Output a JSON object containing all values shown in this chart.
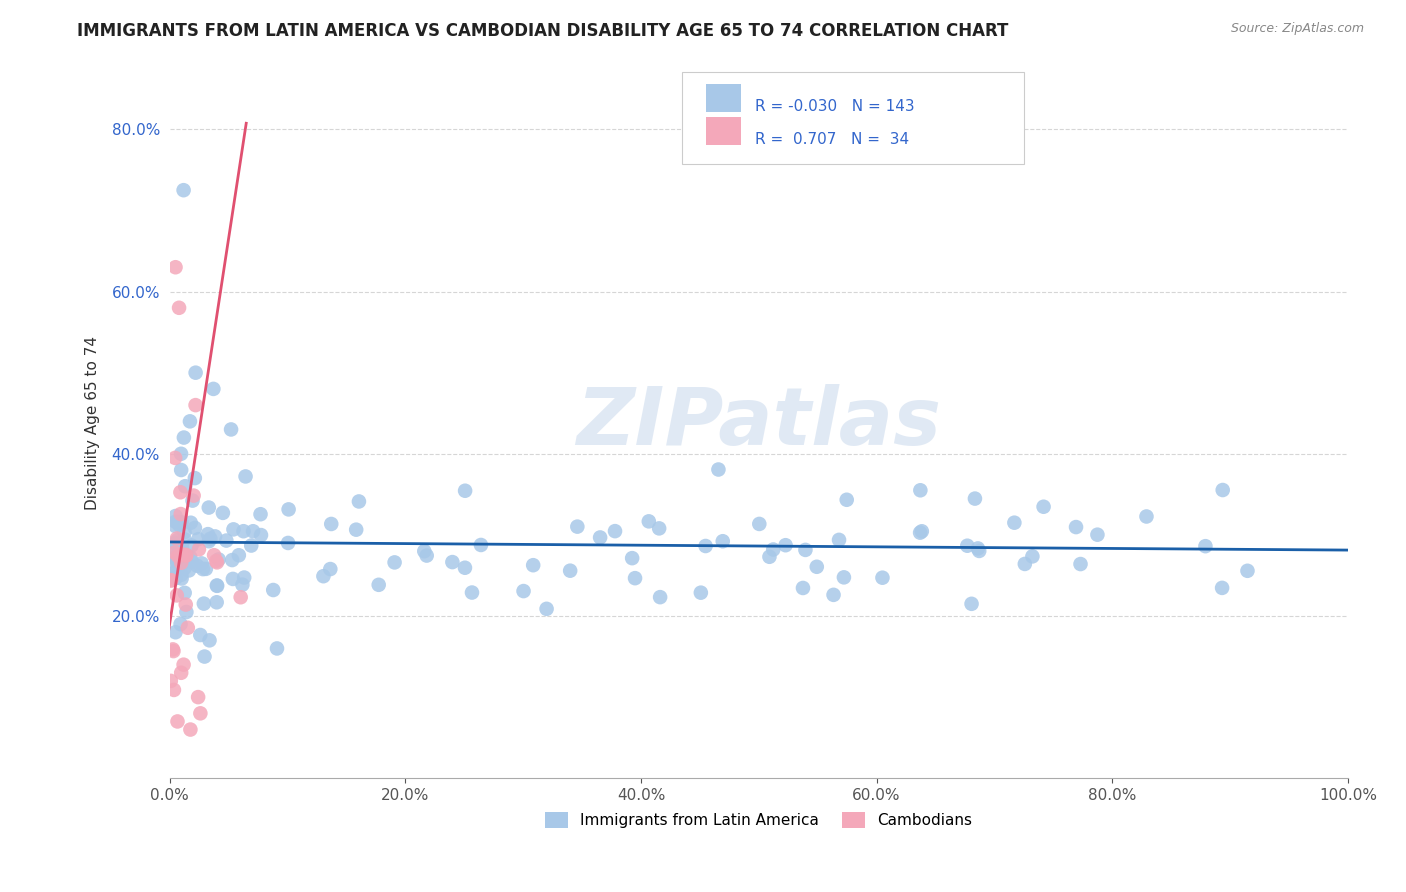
{
  "title": "IMMIGRANTS FROM LATIN AMERICA VS CAMBODIAN DISABILITY AGE 65 TO 74 CORRELATION CHART",
  "source": "Source: ZipAtlas.com",
  "ylabel": "Disability Age 65 to 74",
  "xlim": [
    0.0,
    1.0
  ],
  "ylim": [
    0.0,
    0.875
  ],
  "xtick_values": [
    0.0,
    0.2,
    0.4,
    0.6,
    0.8,
    1.0
  ],
  "ytick_values": [
    0.2,
    0.4,
    0.6,
    0.8
  ],
  "legend_r_blue": "-0.030",
  "legend_n_blue": "143",
  "legend_r_pink": "0.707",
  "legend_n_pink": "34",
  "blue_color": "#a8c8e8",
  "pink_color": "#f4a8ba",
  "blue_line_color": "#1a5fa8",
  "pink_line_color": "#e05070",
  "watermark": "ZIPatlas",
  "grid_color": "#cccccc",
  "title_fontsize": 12,
  "axis_label_fontsize": 11,
  "tick_fontsize": 11
}
